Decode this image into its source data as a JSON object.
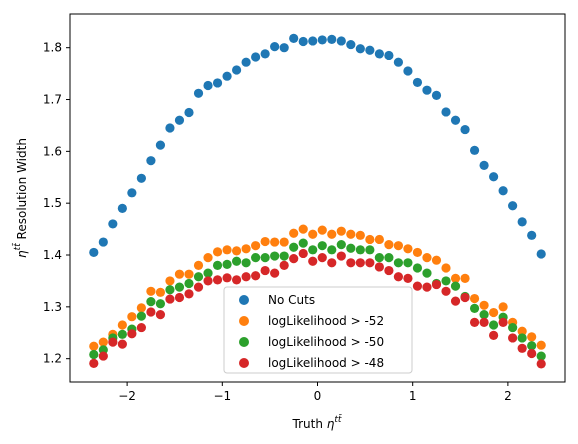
{
  "chart_data": {
    "type": "scatter",
    "xlabel_main": "Truth ",
    "xlabel_sym": "η",
    "xlabel_sup": "tt̄",
    "ylabel_sym": "η",
    "ylabel_sup": "tt̄",
    "ylabel_main": " Resolution Width",
    "xlim": [
      -2.6,
      2.6
    ],
    "ylim": [
      1.155,
      1.865
    ],
    "xticks": [
      -2,
      -1,
      0,
      1,
      2
    ],
    "xtick_labels": [
      "−2",
      "−1",
      "0",
      "1",
      "2"
    ],
    "yticks": [
      1.2,
      1.3,
      1.4,
      1.5,
      1.6,
      1.7,
      1.8
    ],
    "ytick_labels": [
      "1.2",
      "1.3",
      "1.4",
      "1.5",
      "1.6",
      "1.7",
      "1.8"
    ],
    "grid": false,
    "legend_position": "lower-center",
    "x": [
      -2.35,
      -2.25,
      -2.15,
      -2.05,
      -1.95,
      -1.85,
      -1.75,
      -1.65,
      -1.55,
      -1.45,
      -1.35,
      -1.25,
      -1.15,
      -1.05,
      -0.95,
      -0.85,
      -0.75,
      -0.65,
      -0.55,
      -0.45,
      -0.35,
      -0.25,
      -0.15,
      -0.05,
      0.05,
      0.15,
      0.25,
      0.35,
      0.45,
      0.55,
      0.65,
      0.75,
      0.85,
      0.95,
      1.05,
      1.15,
      1.25,
      1.35,
      1.45,
      1.55,
      1.65,
      1.75,
      1.85,
      1.95,
      2.05,
      2.15,
      2.25,
      2.35
    ],
    "series": [
      {
        "name": "No Cuts",
        "color": "#1f77b4",
        "values": [
          1.405,
          1.425,
          1.46,
          1.49,
          1.52,
          1.548,
          1.582,
          1.612,
          1.645,
          1.66,
          1.675,
          1.712,
          1.727,
          1.732,
          1.745,
          1.757,
          1.772,
          1.782,
          1.788,
          1.802,
          1.8,
          1.818,
          1.812,
          1.813,
          1.815,
          1.816,
          1.813,
          1.806,
          1.798,
          1.795,
          1.788,
          1.785,
          1.772,
          1.755,
          1.733,
          1.718,
          1.708,
          1.676,
          1.66,
          1.642,
          1.602,
          1.573,
          1.551,
          1.524,
          1.495,
          1.464,
          1.438,
          1.402
        ]
      },
      {
        "name": "logLikelihood > -52",
        "color": "#ff7f0e",
        "values": [
          1.224,
          1.232,
          1.247,
          1.265,
          1.281,
          1.298,
          1.33,
          1.328,
          1.35,
          1.363,
          1.363,
          1.38,
          1.395,
          1.406,
          1.41,
          1.408,
          1.412,
          1.418,
          1.426,
          1.425,
          1.425,
          1.442,
          1.45,
          1.44,
          1.448,
          1.44,
          1.446,
          1.44,
          1.438,
          1.43,
          1.43,
          1.42,
          1.418,
          1.412,
          1.405,
          1.395,
          1.39,
          1.375,
          1.355,
          1.355,
          1.316,
          1.303,
          1.289,
          1.3,
          1.27,
          1.253,
          1.242,
          1.226
        ]
      },
      {
        "name": "logLikelihood > -50",
        "color": "#2ca02c",
        "values": [
          1.208,
          1.217,
          1.24,
          1.247,
          1.257,
          1.282,
          1.31,
          1.306,
          1.333,
          1.338,
          1.345,
          1.358,
          1.365,
          1.38,
          1.382,
          1.388,
          1.385,
          1.395,
          1.395,
          1.398,
          1.398,
          1.415,
          1.423,
          1.41,
          1.418,
          1.41,
          1.42,
          1.413,
          1.41,
          1.41,
          1.395,
          1.395,
          1.385,
          1.385,
          1.375,
          1.365,
          1.345,
          1.35,
          1.34,
          1.32,
          1.297,
          1.285,
          1.265,
          1.28,
          1.26,
          1.24,
          1.225,
          1.205
        ]
      },
      {
        "name": "logLikelihood > -48",
        "color": "#d62728",
        "values": [
          1.191,
          1.205,
          1.232,
          1.228,
          1.248,
          1.26,
          1.29,
          1.285,
          1.315,
          1.318,
          1.325,
          1.338,
          1.35,
          1.352,
          1.356,
          1.352,
          1.358,
          1.36,
          1.37,
          1.365,
          1.38,
          1.393,
          1.403,
          1.388,
          1.395,
          1.385,
          1.398,
          1.385,
          1.385,
          1.385,
          1.377,
          1.37,
          1.358,
          1.355,
          1.34,
          1.338,
          1.343,
          1.33,
          1.311,
          1.318,
          1.27,
          1.27,
          1.245,
          1.27,
          1.24,
          1.22,
          1.21,
          1.19
        ]
      }
    ]
  }
}
